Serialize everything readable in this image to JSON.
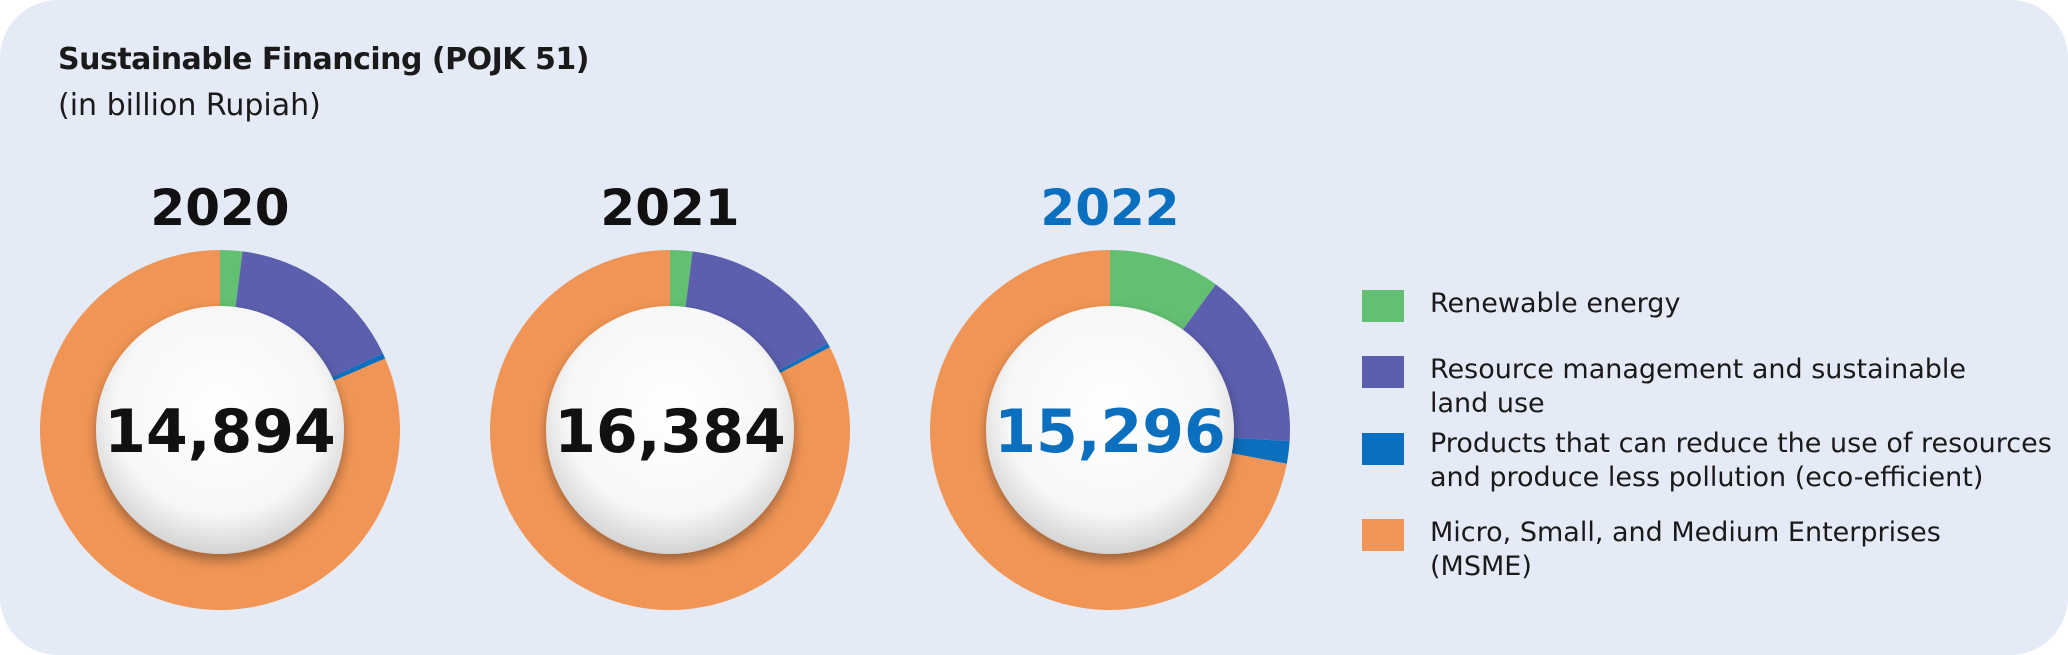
{
  "header": {
    "title": "Sustainable Financing (POJK 51)",
    "subtitle": "(in billion Rupiah)"
  },
  "legend": {
    "items": [
      {
        "label_lines": [
          "Renewable energy"
        ],
        "color": "#63bf72"
      },
      {
        "label_lines": [
          "Resource management and sustainable",
          "land use"
        ],
        "color": "#5b5fae"
      },
      {
        "label_lines": [
          "Products that can reduce the use of resources",
          "and produce less pollution (eco-efficient)"
        ],
        "color": "#0a6fbe"
      },
      {
        "label_lines": [
          "Micro, Small, and Medium Enterprises",
          "(MSME)"
        ],
        "color": "#f09555"
      }
    ]
  },
  "chart_data": {
    "type": "pie",
    "donut": true,
    "title": "Sustainable Financing (POJK 51)",
    "subtitle": "(in billion Rupiah)",
    "categories": [
      "Renewable energy",
      "Resource management and sustainable land use",
      "Products that can reduce the use of resources and produce less pollution (eco-efficient)",
      "Micro, Small, and Medium Enterprises (MSME)"
    ],
    "colors": [
      "#63bf72",
      "#5b5fae",
      "#0a6fbe",
      "#f09555"
    ],
    "charts": [
      {
        "year": "2020",
        "total": "14,894",
        "highlight": false,
        "shares_pct": [
          2,
          16,
          0.5,
          81.5
        ]
      },
      {
        "year": "2021",
        "total": "16,384",
        "highlight": false,
        "shares_pct": [
          2,
          15,
          0.4,
          82.6
        ]
      },
      {
        "year": "2022",
        "total": "15,296",
        "highlight": true,
        "shares_pct": [
          10,
          16,
          2,
          72
        ]
      }
    ],
    "legend_position": "right",
    "year_label_color": "#111111",
    "highlight_color": "#0a6fbe"
  }
}
